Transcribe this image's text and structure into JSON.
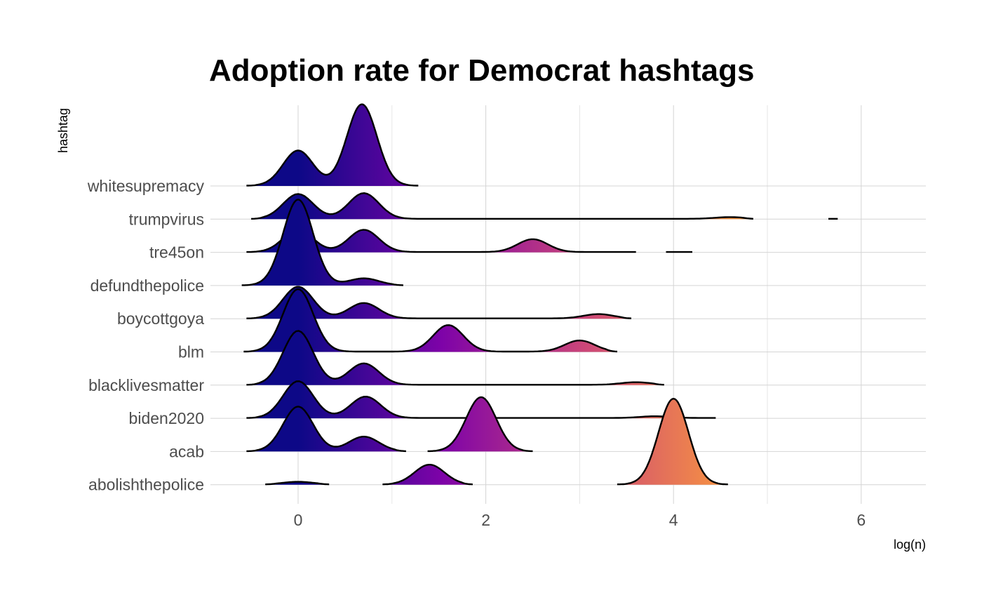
{
  "chart_data": {
    "type": "ridgeline",
    "title": "Adoption rate for Democrat hashtags",
    "xlabel": "log(n)",
    "ylabel": "hashtag",
    "xlim": [
      -0.9,
      6.7
    ],
    "x_ticks": [
      "0",
      "2",
      "4",
      "6"
    ],
    "x_tick_values": [
      0,
      2,
      4,
      6
    ],
    "grid": true,
    "fill_gradient": "plasma, mapped to log(n)",
    "gradient_colors": [
      "#0d0887",
      "#7e03a8",
      "#cc4778",
      "#f89540"
    ],
    "categories": [
      "abolishthepolice",
      "acab",
      "biden2020",
      "blacklivesmatter",
      "blm",
      "boycottgoya",
      "defundthepolice",
      "tre45on",
      "trumpvirus",
      "whitesupremacy"
    ],
    "series": [
      {
        "category": "abolishthepolice",
        "segments": [
          [
            -0.35,
            0.33
          ],
          [
            0.9,
            1.86
          ],
          [
            3.4,
            4.58
          ]
        ],
        "peaks": [
          {
            "x": 0,
            "height": 0.03
          },
          {
            "x": 1.4,
            "height": 0.23
          },
          {
            "x": 4.0,
            "height": 1.0
          }
        ]
      },
      {
        "category": "acab",
        "segments": [
          [
            -0.55,
            1.15
          ],
          [
            1.38,
            2.5
          ]
        ],
        "peaks": [
          {
            "x": 0,
            "height": 0.52
          },
          {
            "x": 0.7,
            "height": 0.17
          },
          {
            "x": 1.95,
            "height": 0.63
          }
        ]
      },
      {
        "category": "biden2020",
        "segments": [
          [
            -0.55,
            4.45
          ]
        ],
        "peaks": [
          {
            "x": 0,
            "height": 0.43
          },
          {
            "x": 0.72,
            "height": 0.25
          },
          {
            "x": 3.8,
            "height": 0.02
          }
        ]
      },
      {
        "category": "blacklivesmatter",
        "segments": [
          [
            -0.55,
            3.9
          ]
        ],
        "peaks": [
          {
            "x": 0,
            "height": 0.63
          },
          {
            "x": 0.7,
            "height": 0.25
          },
          {
            "x": 3.6,
            "height": 0.03
          }
        ]
      },
      {
        "category": "blm",
        "segments": [
          [
            -0.58,
            3.4
          ]
        ],
        "peaks": [
          {
            "x": 0,
            "height": 0.73
          },
          {
            "x": 1.6,
            "height": 0.31
          },
          {
            "x": 3.0,
            "height": 0.13
          }
        ]
      },
      {
        "category": "boycottgoya",
        "segments": [
          [
            -0.55,
            3.55
          ]
        ],
        "peaks": [
          {
            "x": 0,
            "height": 0.37
          },
          {
            "x": 0.7,
            "height": 0.18
          },
          {
            "x": 3.2,
            "height": 0.05
          }
        ]
      },
      {
        "category": "defundthepolice",
        "segments": [
          [
            -0.6,
            1.12
          ]
        ],
        "peaks": [
          {
            "x": 0,
            "height": 1.0
          },
          {
            "x": 0.7,
            "height": 0.08
          }
        ]
      },
      {
        "category": "tre45on",
        "segments": [
          [
            -0.55,
            3.6
          ],
          [
            3.92,
            4.2
          ]
        ],
        "peaks": [
          {
            "x": 0,
            "height": 0.26
          },
          {
            "x": 0.7,
            "height": 0.26
          },
          {
            "x": 2.5,
            "height": 0.15
          }
        ]
      },
      {
        "category": "trumpvirus",
        "segments": [
          [
            -0.5,
            4.85
          ],
          [
            5.65,
            5.75
          ]
        ],
        "peaks": [
          {
            "x": 0,
            "height": 0.29
          },
          {
            "x": 0.7,
            "height": 0.3
          },
          {
            "x": 4.6,
            "height": 0.02
          }
        ]
      },
      {
        "category": "whitesupremacy",
        "segments": [
          [
            -0.55,
            1.28
          ]
        ],
        "peaks": [
          {
            "x": 0,
            "height": 0.41
          },
          {
            "x": 0.68,
            "height": 0.95
          }
        ]
      }
    ]
  }
}
